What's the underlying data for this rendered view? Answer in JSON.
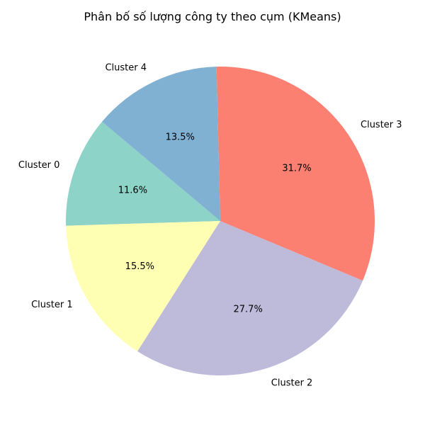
{
  "chart_data": {
    "type": "pie",
    "title": "Phân bố số lượng công ty theo cụm (KMeans)",
    "slices": [
      {
        "label": "Cluster 0",
        "value": 11.6,
        "pct_label": "11.6%",
        "color": "#8dd3c7"
      },
      {
        "label": "Cluster 1",
        "value": 15.5,
        "pct_label": "15.5%",
        "color": "#ffffb3"
      },
      {
        "label": "Cluster 2",
        "value": 27.7,
        "pct_label": "27.7%",
        "color": "#bebada"
      },
      {
        "label": "Cluster 3",
        "value": 31.7,
        "pct_label": "31.7%",
        "color": "#fb8072"
      },
      {
        "label": "Cluster 4",
        "value": 13.5,
        "pct_label": "13.5%",
        "color": "#80b1d3"
      }
    ],
    "start_angle_deg": 140,
    "direction": "counterclockwise",
    "legend": "none"
  }
}
